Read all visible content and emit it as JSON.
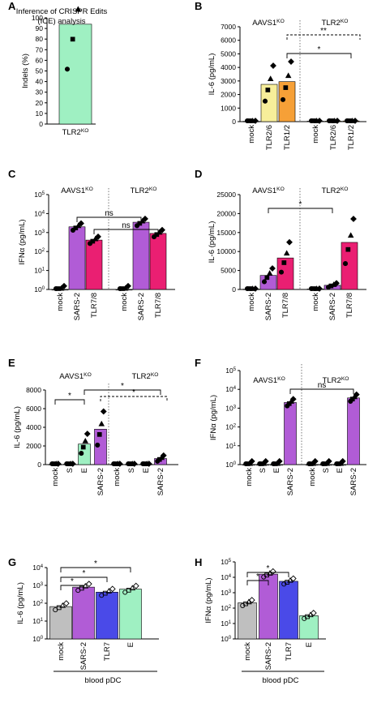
{
  "colors": {
    "mock": "#bfbfbf",
    "tlr26": "#f7ee9a",
    "tlr12": "#f6a037",
    "sars2": "#b15cd6",
    "tlr78": "#ea1f72",
    "e": "#9ff0c2",
    "tlr7": "#4a4ae8",
    "ice": "#9ff0c2"
  },
  "chart_data": [
    {
      "panel": "A",
      "type": "bar",
      "title": "Inference of CRISPR Edits\n(ICE) analysis",
      "ylabel": "Indels (%)",
      "ylim": [
        0,
        100
      ],
      "categories": [
        "TLR2^KO"
      ],
      "values": [
        94
      ],
      "ticks": [
        "0",
        "10",
        "20",
        "30",
        "40",
        "50",
        "60",
        "70",
        "80",
        "90",
        "100"
      ]
    },
    {
      "panel": "B",
      "type": "bar",
      "ylabel": "IL-6 (pg/mL)",
      "ylim": [
        0,
        7000
      ],
      "groups": [
        "AAVS1^KO",
        "TLR2^KO"
      ],
      "categories": [
        "mock",
        "TLR2/6",
        "TLR1/2",
        "mock",
        "TLR2/6",
        "TLR1/2"
      ],
      "values": [
        30,
        2750,
        2950,
        40,
        40,
        50
      ],
      "ticks": [
        "0",
        "1000",
        "2000",
        "3000",
        "4000",
        "5000",
        "6000",
        "7000"
      ],
      "significance": [
        {
          "label": "*",
          "style": "solid"
        },
        {
          "label": "**",
          "style": "dashed"
        }
      ]
    },
    {
      "panel": "C",
      "type": "bar",
      "scale": "log",
      "ylabel": "IFNα (pg/mL)",
      "groups": [
        "AAVS1^KO",
        "TLR2^KO"
      ],
      "categories": [
        "mock",
        "SARS-2",
        "TLR7/8",
        "mock",
        "SARS-2",
        "TLR7/8"
      ],
      "values": [
        1,
        2000,
        400,
        1,
        3500,
        900
      ],
      "ticks": [
        "10^0",
        "10^1",
        "10^2",
        "10^3",
        "10^4",
        "10^5"
      ],
      "significance": [
        {
          "label": "ns"
        },
        {
          "label": "ns"
        }
      ]
    },
    {
      "panel": "D",
      "type": "bar",
      "ylabel": "IL-6 (pg/mL)",
      "ylim": [
        0,
        25000
      ],
      "groups": [
        "AAVS1^KO",
        "TLR2^KO"
      ],
      "categories": [
        "mock",
        "SARS-2",
        "TLR7/8",
        "mock",
        "SARS-2",
        "TLR7/8"
      ],
      "values": [
        100,
        3700,
        8300,
        150,
        1100,
        12400
      ],
      "ticks": [
        "0",
        "5000",
        "10000",
        "15000",
        "20000",
        "25000"
      ],
      "significance": [
        {
          "label": "*"
        }
      ]
    },
    {
      "panel": "E",
      "type": "bar",
      "ylabel": "IL-6 (pg/mL)",
      "ylim": [
        0,
        8000
      ],
      "groups": [
        "AAVS1^KO",
        "TLR2^KO"
      ],
      "categories": [
        "mock",
        "S",
        "E",
        "SARS-2",
        "mock",
        "S",
        "E",
        "SARS-2"
      ],
      "values": [
        30,
        50,
        2200,
        3800,
        30,
        30,
        40,
        650
      ],
      "ticks": [
        "0",
        "2000",
        "4000",
        "6000",
        "8000"
      ],
      "significance": [
        {
          "label": "*"
        },
        {
          "label": "*"
        },
        {
          "label": "*"
        }
      ]
    },
    {
      "panel": "F",
      "type": "bar",
      "scale": "log",
      "ylabel": "IFNα (pg/mL)",
      "groups": [
        "AAVS1^KO",
        "TLR2^KO"
      ],
      "categories": [
        "mock",
        "S",
        "E",
        "SARS-2",
        "mock",
        "S",
        "E",
        "SARS-2"
      ],
      "values": [
        1,
        1,
        1,
        2000,
        1,
        1,
        1,
        3500
      ],
      "ticks": [
        "10^0",
        "10^1",
        "10^2",
        "10^3",
        "10^4",
        "10^5"
      ],
      "significance": [
        {
          "label": "ns"
        }
      ]
    },
    {
      "panel": "G",
      "type": "bar",
      "scale": "log",
      "ylabel": "IL-6 (pg/mL)",
      "xgroup": "blood pDC",
      "categories": [
        "mock",
        "SARS-2",
        "TLR7",
        "E"
      ],
      "values": [
        65,
        800,
        420,
        620
      ],
      "ticks": [
        "10^0",
        "10^1",
        "10^2",
        "10^3",
        "10^4"
      ],
      "significance": [
        {
          "label": "*"
        },
        {
          "label": "*"
        },
        {
          "label": "*"
        }
      ]
    },
    {
      "panel": "H",
      "type": "bar",
      "scale": "log",
      "ylabel": "IFNα (pg/mL)",
      "xgroup": "blood pDC",
      "categories": [
        "mock",
        "SARS-2",
        "TLR7",
        "E"
      ],
      "values": [
        220,
        16000,
        5500,
        32
      ],
      "ticks": [
        "10^0",
        "10^1",
        "10^2",
        "10^3",
        "10^4",
        "10^5"
      ],
      "significance": [
        {
          "label": "*"
        },
        {
          "label": "*"
        }
      ]
    }
  ]
}
